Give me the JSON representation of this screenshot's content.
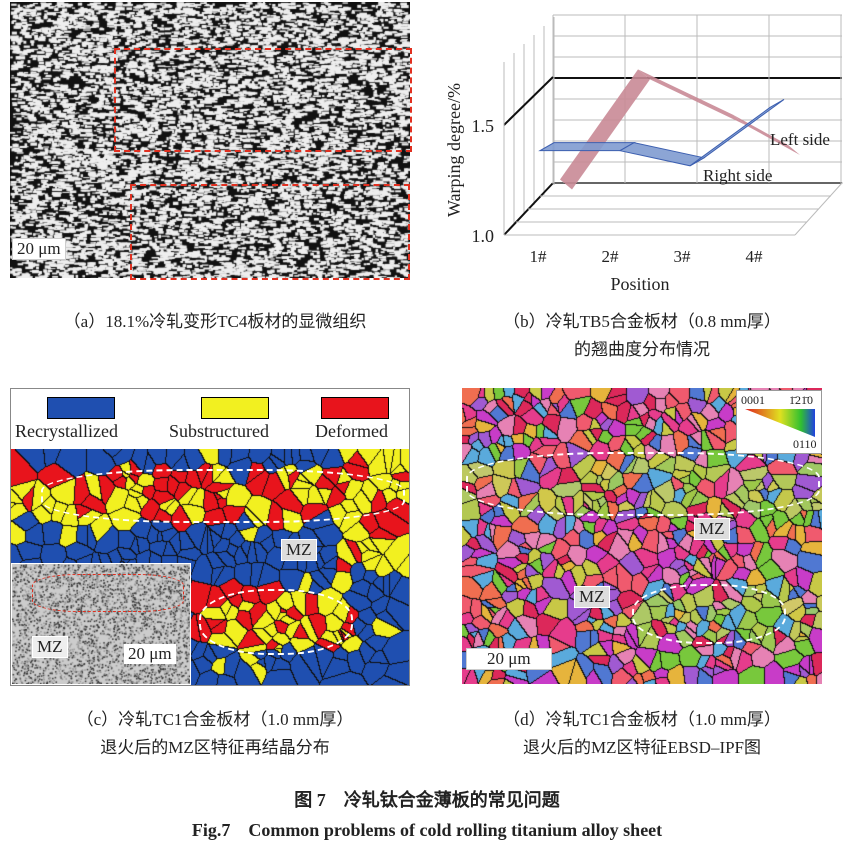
{
  "panel_a": {
    "scale_bar": "20 μm",
    "caption": "（a）18.1%冷轧变形TC4板材的显微组织"
  },
  "panel_b": {
    "caption_line1": "（b）冷轧TB5合金板材（0.8 mm厚）",
    "caption_line2": "的翘曲度分布情况"
  },
  "panel_c": {
    "legend": [
      {
        "label": "Recrystallized",
        "color": "#1f4fb0"
      },
      {
        "label": "Substructured",
        "color": "#f2f020"
      },
      {
        "label": "Deformed",
        "color": "#e8141c"
      }
    ],
    "mz_label": "MZ",
    "inset_mz_label": "MZ",
    "inset_scale_bar": "20 μm",
    "caption_line1": "（c）冷轧TC1合金板材（1.0 mm厚）",
    "caption_line2": "退火后的MZ区特征再结晶分布"
  },
  "panel_d": {
    "ipf_key": {
      "corner_0001": "0001",
      "corner_1210": "1̄21̄0",
      "corner_0110": "0110"
    },
    "mz_label_1": "MZ",
    "mz_label_2": "MZ",
    "scale_bar": "20 μm",
    "caption_line1": "（d）冷轧TC1合金板材（1.0 mm厚）",
    "caption_line2": "退火后的MZ区特征EBSD–IPF图"
  },
  "figure": {
    "title_cn": "图 7　冷轧钛合金薄板的常见问题",
    "title_en": "Fig.7　Common problems of cold rolling titanium alloy sheet"
  },
  "chart_data": {
    "type": "line",
    "style": "3d-ribbon",
    "ylabel": "Warping degree/%",
    "xlabel": "Position",
    "categories": [
      "1#",
      "2#",
      "3#",
      "4#"
    ],
    "yticks": [
      "1.0",
      "1.5"
    ],
    "grid": true,
    "series": [
      {
        "name": "Left side",
        "values": [
          1.09,
          1.6,
          1.39,
          1.25
        ],
        "color": "#c98a96"
      },
      {
        "name": "Right side",
        "values": [
          1.27,
          1.27,
          1.2,
          1.47
        ],
        "color": "#7f9bd0"
      }
    ]
  }
}
